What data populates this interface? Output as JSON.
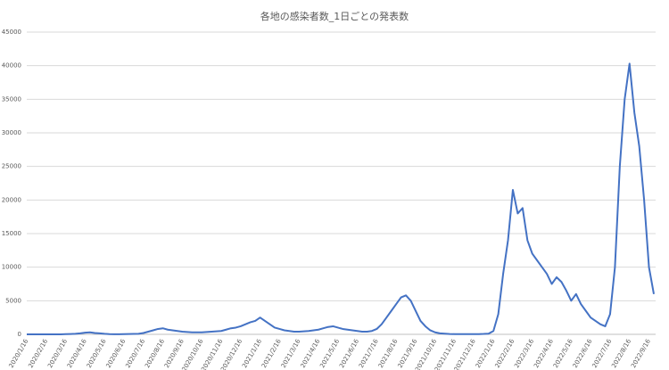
{
  "chart_data": {
    "type": "line",
    "title": "各地の感染者数_1日ごとの発表数",
    "categories": [
      "2020/1/16",
      null,
      null,
      null,
      "2020/2/16",
      null,
      null,
      null,
      "2020/3/16",
      null,
      null,
      null,
      "2020/4/16",
      null,
      null,
      null,
      "2020/5/16",
      null,
      null,
      null,
      "2020/6/16",
      null,
      null,
      null,
      "2020/7/16",
      null,
      null,
      null,
      "2020/8/16",
      null,
      null,
      null,
      "2020/9/16",
      null,
      null,
      null,
      "2020/10/16",
      null,
      null,
      null,
      "2020/11/16",
      null,
      null,
      null,
      "2020/12/16",
      null,
      null,
      null,
      "2021/1/16",
      null,
      null,
      null,
      "2021/2/16",
      null,
      null,
      null,
      "2021/3/16",
      null,
      null,
      null,
      "2021/4/16",
      null,
      null,
      null,
      "2021/5/16",
      null,
      null,
      null,
      "2021/6/16",
      null,
      null,
      null,
      "2021/7/16",
      null,
      null,
      null,
      "2021/8/16",
      null,
      null,
      null,
      "2021/9/16",
      null,
      null,
      null,
      "2021/10/16",
      null,
      null,
      null,
      "2021/11/16",
      null,
      null,
      null,
      "2021/12/16",
      null,
      null,
      null,
      "2022/1/16",
      null,
      null,
      null,
      "2022/2/16",
      null,
      null,
      null,
      "2022/3/16",
      null,
      null,
      null,
      "2022/4/16",
      null,
      null,
      null,
      "2022/5/16",
      null,
      null,
      null,
      "2022/6/16",
      null,
      null,
      null,
      "2022/7/16",
      null,
      null,
      null,
      "2022/8/16",
      null,
      null,
      null,
      "2022/9/16",
      null
    ],
    "values": [
      0,
      0,
      0,
      0,
      0,
      0,
      0,
      0,
      30,
      50,
      80,
      150,
      250,
      300,
      200,
      150,
      80,
      40,
      20,
      20,
      40,
      50,
      60,
      80,
      200,
      400,
      600,
      800,
      900,
      700,
      600,
      500,
      400,
      350,
      300,
      300,
      300,
      350,
      400,
      450,
      500,
      700,
      900,
      1000,
      1200,
      1500,
      1800,
      2000,
      2500,
      2000,
      1500,
      1000,
      800,
      600,
      500,
      400,
      400,
      450,
      500,
      600,
      700,
      900,
      1100,
      1200,
      1000,
      800,
      700,
      600,
      500,
      400,
      400,
      500,
      800,
      1500,
      2500,
      3500,
      4500,
      5500,
      5800,
      5000,
      3500,
      2000,
      1200,
      600,
      300,
      150,
      100,
      50,
      40,
      30,
      30,
      30,
      30,
      40,
      60,
      100,
      500,
      3000,
      9000,
      14000,
      21500,
      18000,
      18800,
      14000,
      12000,
      11000,
      10000,
      9000,
      7500,
      8500,
      7800,
      6500,
      5000,
      6000,
      4500,
      3500,
      2500,
      2000,
      1500,
      1200,
      3000,
      10000,
      25000,
      35000,
      40300,
      33000,
      28000,
      20000,
      10000,
      6000
    ],
    "color": "#4472c4",
    "ylim": [
      0,
      45000
    ],
    "yticks": [
      0,
      5000,
      10000,
      15000,
      20000,
      25000,
      30000,
      35000,
      40000,
      45000
    ],
    "grid": true
  }
}
